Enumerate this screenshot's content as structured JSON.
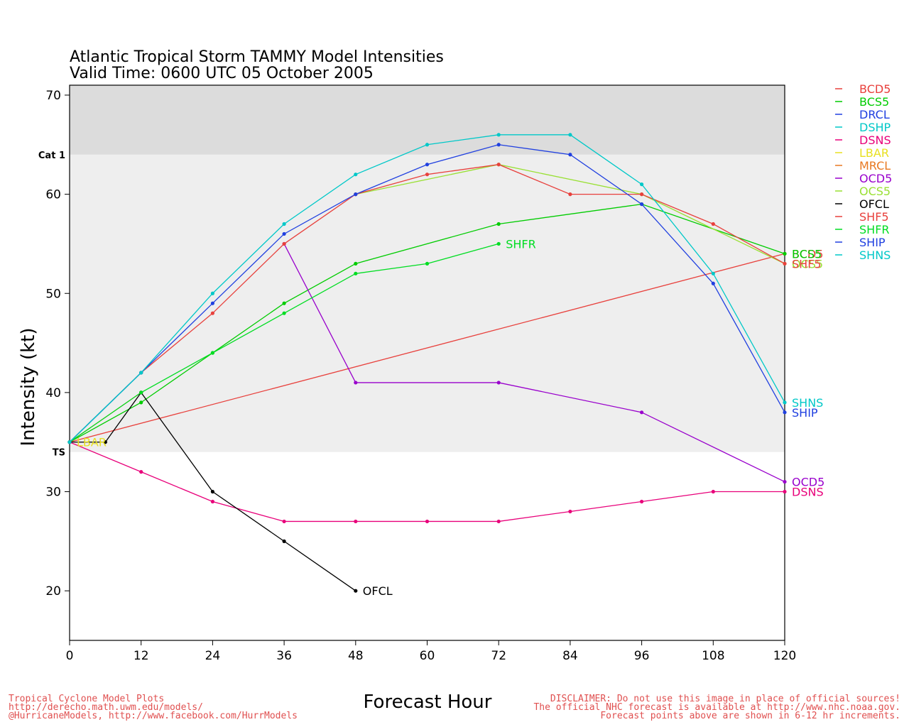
{
  "chart_data": {
    "type": "line",
    "title_line1": "Atlantic Tropical Storm TAMMY Model Intensities",
    "title_line2": "Valid Time: 0600 UTC 05 October 2005",
    "xlabel": "Forecast Hour",
    "ylabel": "Intensity (kt)",
    "xlim": [
      0,
      120
    ],
    "ylim": [
      15,
      71
    ],
    "xticks": [
      "0",
      "12",
      "24",
      "36",
      "48",
      "60",
      "72",
      "84",
      "96",
      "108",
      "120"
    ],
    "yticks": [
      "20",
      "30",
      "40",
      "50",
      "60",
      "70"
    ],
    "bands": [
      {
        "label": "TS",
        "from": 34,
        "to": 64,
        "color": "#eeeeee"
      },
      {
        "label": "Cat 1",
        "from": 64,
        "to": 71,
        "color": "#dcdcdc"
      }
    ],
    "legend_position": "right",
    "series": [
      {
        "name": "BCD5",
        "color": "#e8403c",
        "x": [
          0,
          120
        ],
        "y": [
          35,
          54
        ],
        "end_label": "BCD5"
      },
      {
        "name": "BCS5",
        "color": "#00cc00",
        "x": [
          0,
          12,
          24,
          36,
          48,
          72,
          96,
          120
        ],
        "y": [
          35,
          39,
          44,
          49,
          53,
          57,
          59,
          54
        ],
        "end_label": "BCS5"
      },
      {
        "name": "DRCL",
        "color": "#2040e0",
        "x": [
          0,
          12
        ],
        "y": [
          35,
          42
        ],
        "end_label": ""
      },
      {
        "name": "DSHP",
        "color": "#00c8c8",
        "x": [
          0,
          12
        ],
        "y": [
          35,
          42
        ],
        "end_label": ""
      },
      {
        "name": "DSNS",
        "color": "#e8007a",
        "x": [
          0,
          12,
          24,
          36,
          48,
          60,
          72,
          84,
          96,
          108,
          120
        ],
        "y": [
          35,
          32,
          29,
          27,
          27,
          27,
          27,
          28,
          29,
          30,
          30
        ],
        "end_label": "DSNS"
      },
      {
        "name": "LBAR",
        "color": "#e8e020",
        "x": [
          0
        ],
        "y": [
          35
        ],
        "end_label": "LBAR"
      },
      {
        "name": "MRCL",
        "color": "#e87820",
        "x": [
          0,
          12
        ],
        "y": [
          35,
          40
        ],
        "end_label": ""
      },
      {
        "name": "OCD5",
        "color": "#9900cc",
        "x": [
          36,
          48,
          72,
          96,
          120
        ],
        "y": [
          55,
          41,
          41,
          38,
          31
        ],
        "end_label": "OCD5"
      },
      {
        "name": "OCS5",
        "color": "#99e033",
        "x": [
          48,
          72,
          96,
          120
        ],
        "y": [
          60,
          63,
          60,
          53
        ],
        "end_label": "OCS5"
      },
      {
        "name": "OFCL",
        "color": "#000000",
        "x": [
          0,
          6,
          12,
          24,
          36,
          48
        ],
        "y": [
          35,
          35,
          40,
          30,
          25,
          20
        ],
        "end_label": "OFCL"
      },
      {
        "name": "SHF5",
        "color": "#e8403c",
        "x": [
          0,
          12,
          24,
          36,
          48,
          60,
          72,
          84,
          96,
          108,
          120
        ],
        "y": [
          35,
          42,
          48,
          55,
          60,
          62,
          63,
          60,
          60,
          57,
          53
        ],
        "end_label": "SHF5"
      },
      {
        "name": "SHFR",
        "color": "#00dd22",
        "x": [
          0,
          12,
          24,
          36,
          48,
          60,
          72
        ],
        "y": [
          35,
          40,
          44,
          48,
          52,
          53,
          55
        ],
        "end_label": "SHFR"
      },
      {
        "name": "SHIP",
        "color": "#2040e0",
        "x": [
          0,
          12,
          24,
          36,
          48,
          60,
          72,
          84,
          96,
          108,
          120
        ],
        "y": [
          35,
          42,
          49,
          56,
          60,
          63,
          65,
          64,
          59,
          51,
          38
        ],
        "end_label": "SHIP"
      },
      {
        "name": "SHNS",
        "color": "#00c8c8",
        "x": [
          0,
          12,
          24,
          36,
          48,
          60,
          72,
          84,
          96,
          108,
          120
        ],
        "y": [
          35,
          42,
          50,
          57,
          62,
          65,
          66,
          66,
          61,
          52,
          39
        ],
        "end_label": "SHNS"
      }
    ]
  },
  "footer": {
    "left": [
      "Tropical Cyclone Model Plots",
      "http://derecho.math.uwm.edu/models/",
      "@HurricaneModels, http://www.facebook.com/HurrModels"
    ],
    "right": [
      "DISCLAIMER: Do not use this image in place of official sources!",
      "The official NHC forecast is available at http://www.nhc.noaa.gov.",
      "Forecast points above are shown in 6-12 hr increments."
    ]
  }
}
